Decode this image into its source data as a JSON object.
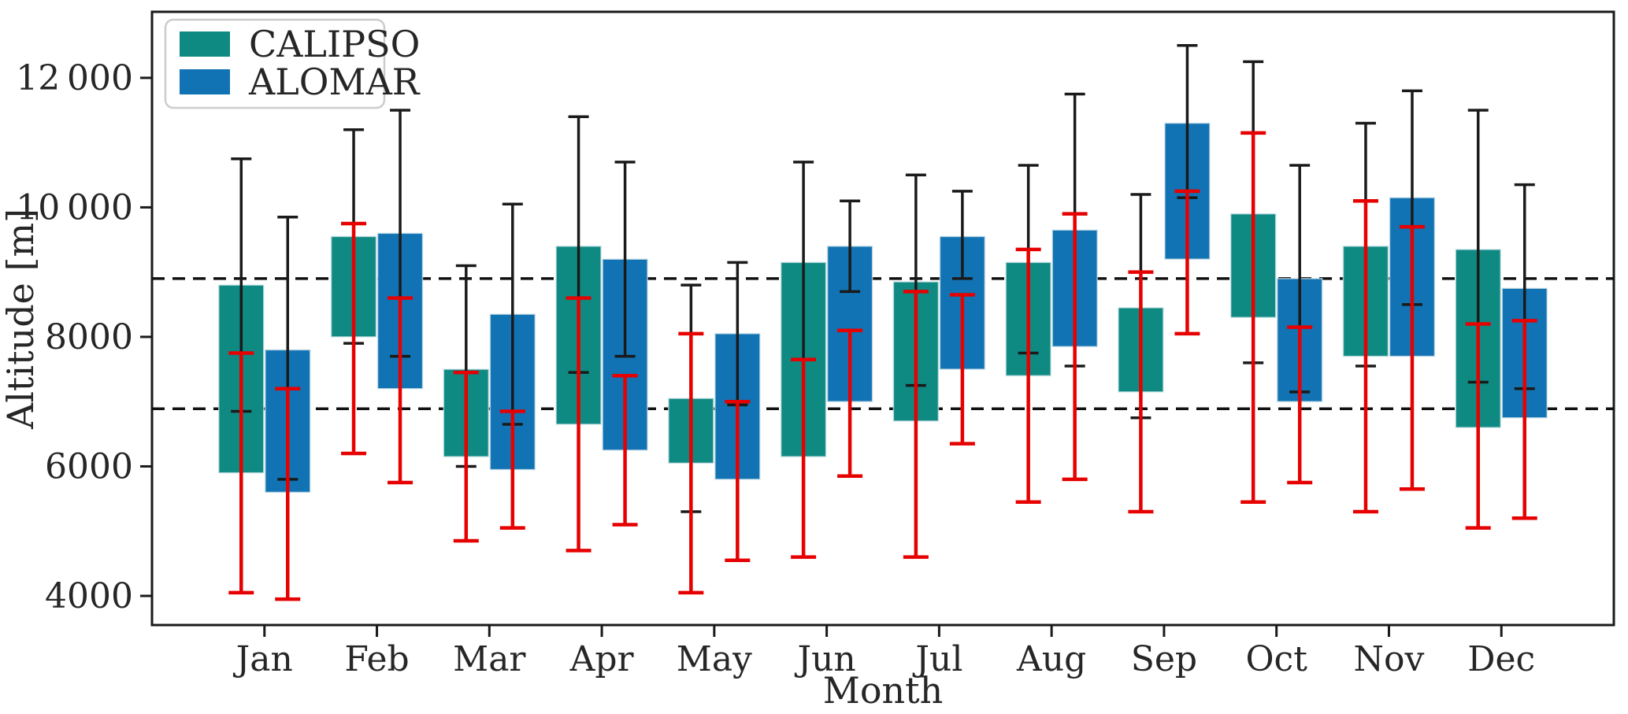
{
  "chart_data": {
    "type": "bar",
    "title": "",
    "xlabel": "Month",
    "ylabel": "Altitude [m]",
    "legend_position": "upper-left",
    "grid": false,
    "categories": [
      "Jan",
      "Feb",
      "Mar",
      "Apr",
      "May",
      "Jun",
      "Jul",
      "Aug",
      "Sep",
      "Oct",
      "Nov",
      "Dec"
    ],
    "ylim": [
      3550,
      13020
    ],
    "yticks": [
      {
        "value": 4000,
        "label": "4000"
      },
      {
        "value": 6000,
        "label": "6000"
      },
      {
        "value": 8000,
        "label": "8000"
      },
      {
        "value": 10000,
        "label": "10 000"
      },
      {
        "value": 12000,
        "label": "12 000"
      }
    ],
    "dashed_hlines": [
      8900,
      6890
    ],
    "colors": {
      "calipso": "#0e8a82",
      "alomar": "#1273b4",
      "black_errorbar": "#1a1a1a",
      "red_errorbar": "#e60000",
      "dashed_line": "#111111",
      "axis": "#1a1a1a"
    },
    "series": [
      {
        "name": "CALIPSO",
        "color_key": "calipso",
        "bars": [
          {
            "month": "Jan",
            "bar": [
              5900,
              8800
            ],
            "black": [
              6850,
              10750
            ],
            "red": [
              4050,
              7750
            ]
          },
          {
            "month": "Feb",
            "bar": [
              8000,
              9550
            ],
            "black": [
              7900,
              11200
            ],
            "red": [
              6200,
              9750
            ]
          },
          {
            "month": "Mar",
            "bar": [
              6150,
              7500
            ],
            "black": [
              6000,
              9100
            ],
            "red": [
              4850,
              7450
            ]
          },
          {
            "month": "Apr",
            "bar": [
              6650,
              9400
            ],
            "black": [
              7450,
              11400
            ],
            "red": [
              4700,
              8600
            ]
          },
          {
            "month": "May",
            "bar": [
              6050,
              7050
            ],
            "black": [
              5300,
              8800
            ],
            "red": [
              4050,
              8050
            ]
          },
          {
            "month": "Jun",
            "bar": [
              6150,
              9150
            ],
            "black": [
              7650,
              10700
            ],
            "red": [
              4600,
              7650
            ]
          },
          {
            "month": "Jul",
            "bar": [
              6700,
              8850
            ],
            "black": [
              7250,
              10500
            ],
            "red": [
              4600,
              8700
            ]
          },
          {
            "month": "Aug",
            "bar": [
              7400,
              9150
            ],
            "black": [
              7750,
              10650
            ],
            "red": [
              5450,
              9350
            ]
          },
          {
            "month": "Sep",
            "bar": [
              7150,
              8450
            ],
            "black": [
              6750,
              10200
            ],
            "red": [
              5300,
              9000
            ]
          },
          {
            "month": "Oct",
            "bar": [
              8300,
              9900
            ],
            "black": [
              7600,
              12250
            ],
            "red": [
              5450,
              11150
            ]
          },
          {
            "month": "Nov",
            "bar": [
              7700,
              9400
            ],
            "black": [
              7550,
              11300
            ],
            "red": [
              5300,
              10100
            ]
          },
          {
            "month": "Dec",
            "bar": [
              6600,
              9350
            ],
            "black": [
              7300,
              11500
            ],
            "red": [
              5050,
              8200
            ]
          }
        ]
      },
      {
        "name": "ALOMAR",
        "color_key": "alomar",
        "bars": [
          {
            "month": "Jan",
            "bar": [
              5600,
              7800
            ],
            "black": [
              5800,
              9850
            ],
            "red": [
              3950,
              7200
            ]
          },
          {
            "month": "Feb",
            "bar": [
              7200,
              9600
            ],
            "black": [
              7700,
              11500
            ],
            "red": [
              5750,
              8600
            ]
          },
          {
            "month": "Mar",
            "bar": [
              5950,
              8350
            ],
            "black": [
              6650,
              10050
            ],
            "red": [
              5050,
              6850
            ]
          },
          {
            "month": "Apr",
            "bar": [
              6250,
              9200
            ],
            "black": [
              7700,
              10700
            ],
            "red": [
              5100,
              7400
            ]
          },
          {
            "month": "May",
            "bar": [
              5800,
              8050
            ],
            "black": [
              6950,
              9150
            ],
            "red": [
              4550,
              7000
            ]
          },
          {
            "month": "Jun",
            "bar": [
              7000,
              9400
            ],
            "black": [
              8700,
              10100
            ],
            "red": [
              5850,
              8100
            ]
          },
          {
            "month": "Jul",
            "bar": [
              7500,
              9550
            ],
            "black": [
              8900,
              10250
            ],
            "red": [
              6350,
              8650
            ]
          },
          {
            "month": "Aug",
            "bar": [
              7850,
              9650
            ],
            "black": [
              7550,
              11750
            ],
            "red": [
              5800,
              9900
            ]
          },
          {
            "month": "Sep",
            "bar": [
              9200,
              11300
            ],
            "black": [
              10150,
              12500
            ],
            "red": [
              8050,
              10250
            ]
          },
          {
            "month": "Oct",
            "bar": [
              7000,
              8900
            ],
            "black": [
              7150,
              10650
            ],
            "red": [
              5750,
              8150
            ]
          },
          {
            "month": "Nov",
            "bar": [
              7700,
              10150
            ],
            "black": [
              8500,
              11800
            ],
            "red": [
              5650,
              9700
            ]
          },
          {
            "month": "Dec",
            "bar": [
              6750,
              8750
            ],
            "black": [
              7200,
              10350
            ],
            "red": [
              5200,
              8250
            ]
          }
        ]
      }
    ]
  }
}
